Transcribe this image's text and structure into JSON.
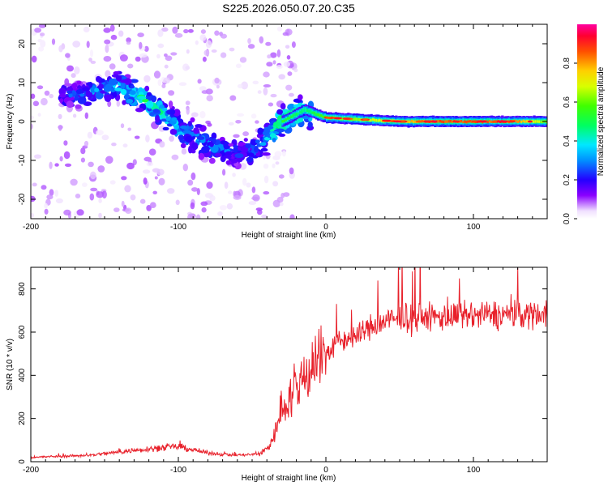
{
  "title": "S225.2026.050.07.20.C35",
  "colors": {
    "snr_line": "#e8202a",
    "axis": "#000000",
    "background": "#ffffff"
  },
  "chart_data": [
    {
      "type": "heatmap",
      "name": "spectrogram",
      "xlabel": "Height of straight line (km)",
      "ylabel": "Frequency (Hz)",
      "xlim": [
        -200,
        150
      ],
      "ylim": [
        -25,
        25
      ],
      "xticks": [
        -200,
        -100,
        0,
        100
      ],
      "yticks": [
        -20,
        -10,
        0,
        10,
        20
      ],
      "colorbar": {
        "label": "Normalized spectral amplitude",
        "range": [
          0,
          1
        ],
        "ticks": [
          0.0,
          0.2,
          0.4,
          0.6,
          0.8
        ]
      },
      "ridge": [
        {
          "x": -170,
          "y": 7,
          "amp": 0.25
        },
        {
          "x": -155,
          "y": 8,
          "amp": 0.3
        },
        {
          "x": -140,
          "y": 9,
          "amp": 0.35
        },
        {
          "x": -125,
          "y": 6,
          "amp": 0.45
        },
        {
          "x": -110,
          "y": 2,
          "amp": 0.4
        },
        {
          "x": -95,
          "y": -3,
          "amp": 0.35
        },
        {
          "x": -80,
          "y": -6,
          "amp": 0.3
        },
        {
          "x": -65,
          "y": -8,
          "amp": 0.25
        },
        {
          "x": -50,
          "y": -8,
          "amp": 0.3
        },
        {
          "x": -40,
          "y": -4,
          "amp": 0.35
        },
        {
          "x": -30,
          "y": 0,
          "amp": 0.55
        },
        {
          "x": -15,
          "y": 3,
          "amp": 0.45
        },
        {
          "x": 0,
          "y": 1,
          "amp": 0.6
        },
        {
          "x": 25,
          "y": 0.5,
          "amp": 0.65
        },
        {
          "x": 50,
          "y": 0,
          "amp": 0.75
        },
        {
          "x": 75,
          "y": 0,
          "amp": 0.85
        },
        {
          "x": 100,
          "y": 0,
          "amp": 0.85
        },
        {
          "x": 125,
          "y": 0,
          "amp": 0.85
        },
        {
          "x": 150,
          "y": 0,
          "amp": 0.6
        }
      ]
    },
    {
      "type": "line",
      "name": "snr",
      "xlabel": "Height of straight line (km)",
      "ylabel": "SNR (10 * v/v)",
      "xlim": [
        -200,
        150
      ],
      "ylim": [
        0,
        900
      ],
      "xticks": [
        -200,
        -100,
        0,
        100
      ],
      "yticks": [
        0,
        200,
        400,
        600,
        800
      ],
      "series": [
        {
          "name": "SNR",
          "x": [
            -200,
            -180,
            -160,
            -140,
            -120,
            -100,
            -80,
            -60,
            -45,
            -40,
            -35,
            -30,
            -25,
            -20,
            -15,
            -10,
            -5,
            0,
            10,
            20,
            30,
            40,
            50,
            60,
            70,
            80,
            90,
            100,
            110,
            120,
            130,
            140,
            150
          ],
          "y": [
            20,
            25,
            30,
            45,
            60,
            70,
            40,
            30,
            35,
            60,
            120,
            250,
            300,
            320,
            400,
            450,
            480,
            500,
            560,
            580,
            620,
            650,
            660,
            665,
            668,
            670,
            672,
            675,
            678,
            680,
            682,
            685,
            690
          ]
        }
      ]
    }
  ]
}
